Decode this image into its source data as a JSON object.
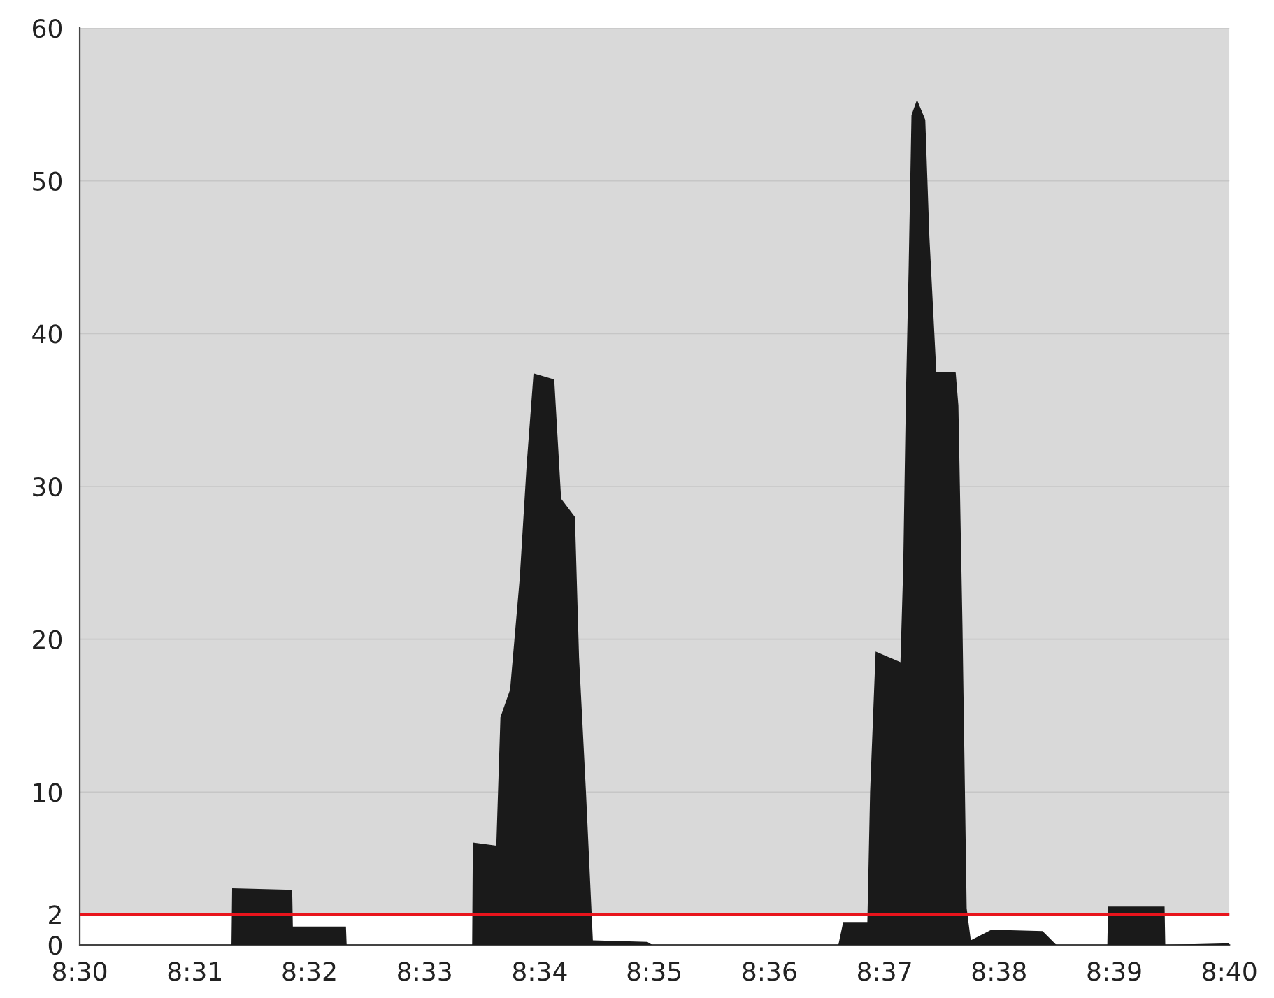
{
  "chart_data": {
    "type": "area",
    "x": [
      8.5,
      8.522,
      8.5221,
      8.5308,
      8.5309,
      8.5386,
      8.5387,
      8.5569,
      8.557,
      8.5604,
      8.561,
      8.5624,
      8.5638,
      8.5648,
      8.5658,
      8.5688,
      8.5698,
      8.5718,
      8.5724,
      8.5734,
      8.5744,
      8.5823,
      8.583,
      8.61,
      8.6107,
      8.6142,
      8.6146,
      8.6154,
      8.619,
      8.6194,
      8.6198,
      8.6202,
      8.6206,
      8.6214,
      8.6226,
      8.6232,
      8.6242,
      8.627,
      8.6274,
      8.628,
      8.6286,
      8.6292,
      8.6322,
      8.6396,
      8.6416,
      8.649,
      8.6491,
      8.6573,
      8.6574,
      8.6667
    ],
    "series": [
      {
        "color": "#1a1a1a",
        "values": [
          0,
          0,
          3.7,
          3.6,
          1.2,
          1.2,
          0,
          0,
          6.7,
          6.5,
          14.9,
          16.7,
          24,
          31.4,
          37.4,
          37,
          29.2,
          28,
          18.8,
          10,
          0.3,
          0.2,
          0,
          0,
          1.5,
          1.5,
          10,
          19.2,
          18.5,
          24.7,
          36,
          44.5,
          54.3,
          55.3,
          54,
          46.3,
          37.5,
          37.5,
          35.3,
          20.7,
          2.4,
          0.3,
          1.0,
          0.9,
          0,
          0,
          2.5,
          2.5,
          0,
          0.1
        ]
      }
    ],
    "xlim": [
      8.5,
      8.6667
    ],
    "xticks": [
      {
        "value": 8.5,
        "label": "8:30"
      },
      {
        "value": 8.5167,
        "label": "8:31"
      },
      {
        "value": 8.5333,
        "label": "8:32"
      },
      {
        "value": 8.55,
        "label": "8:33"
      },
      {
        "value": 8.5667,
        "label": "8:34"
      },
      {
        "value": 8.5833,
        "label": "8:35"
      },
      {
        "value": 8.6,
        "label": "8:36"
      },
      {
        "value": 8.6167,
        "label": "8:37"
      },
      {
        "value": 8.6333,
        "label": "8:38"
      },
      {
        "value": 8.65,
        "label": "8:39"
      },
      {
        "value": 8.6667,
        "label": "8:40"
      }
    ],
    "ylim": [
      0,
      60
    ],
    "yticks": [
      0,
      2,
      10,
      20,
      30,
      40,
      50,
      60
    ],
    "grid": "y",
    "ref_lines": [
      {
        "axis": "y",
        "value": 2,
        "color": "#e8141c"
      }
    ],
    "bands": [
      {
        "axis": "y",
        "from": 2,
        "to": 60,
        "color": "#d9d9d9"
      }
    ]
  }
}
